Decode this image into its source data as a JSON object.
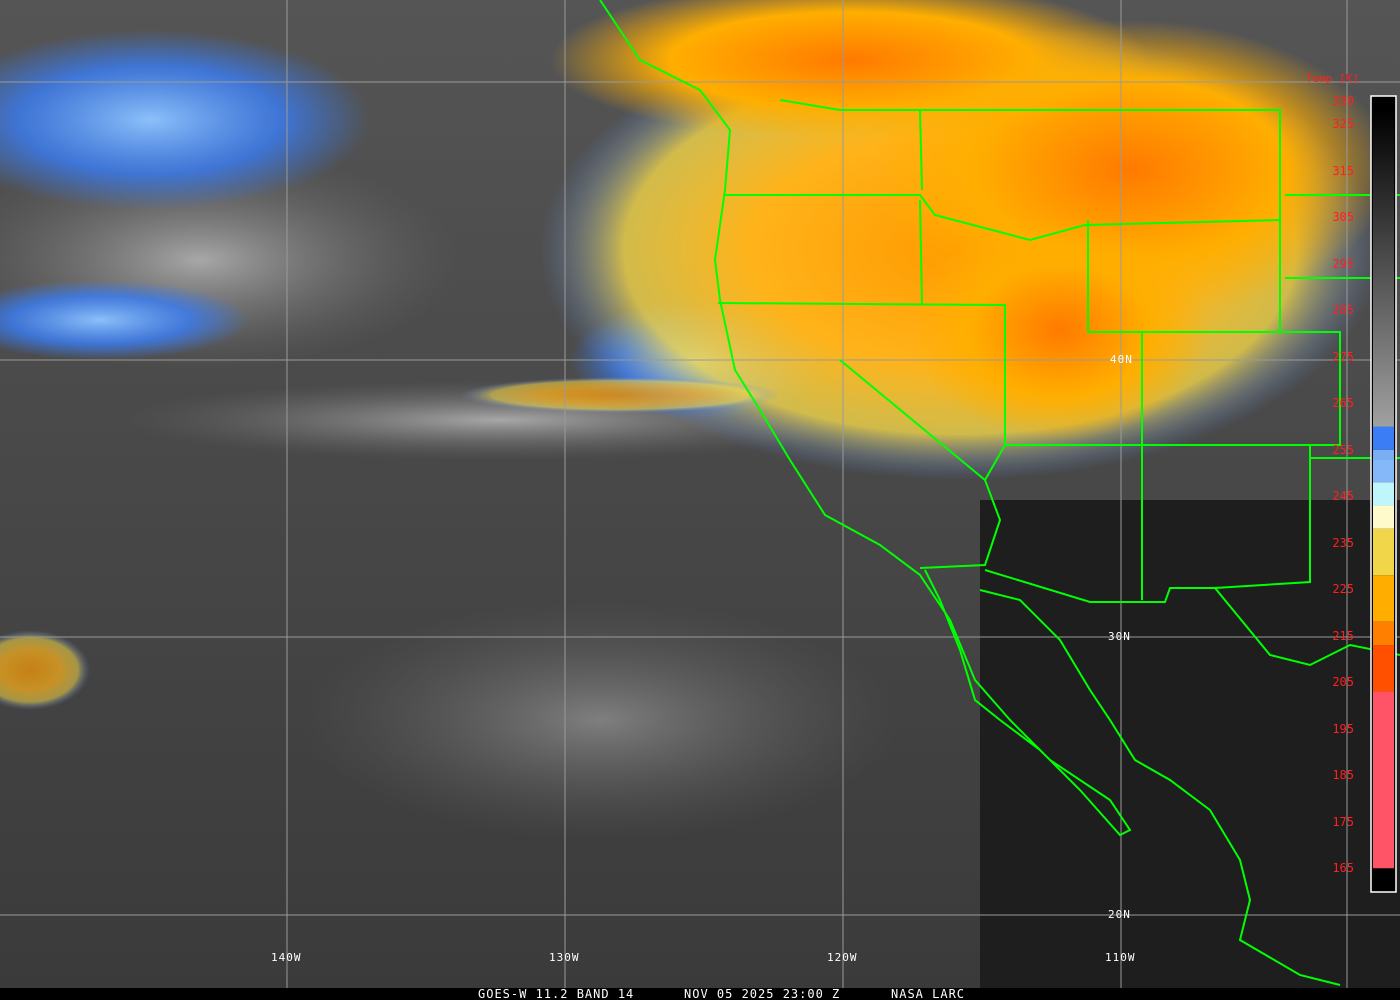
{
  "footer": {
    "satellite": "GOES-W 11.2 BAND 14",
    "datetime": "NOV 05 2025 23:00 Z",
    "source": "NASA LARC"
  },
  "colorbar": {
    "title": "Temp [K]",
    "ticks": [
      "330",
      "325",
      "315",
      "305",
      "295",
      "285",
      "275",
      "265",
      "255",
      "245",
      "235",
      "225",
      "215",
      "205",
      "195",
      "185",
      "175",
      "165"
    ],
    "range_k": [
      165,
      330
    ],
    "bands": [
      {
        "from": 330,
        "to": 260,
        "color": "gradient #000000-#a0a0a0"
      },
      {
        "from": 260,
        "to": 255,
        "color": "#3a7df5"
      },
      {
        "from": 255,
        "to": 253,
        "color": "#79aef5"
      },
      {
        "from": 253,
        "to": 248,
        "color": "#84b8f8"
      },
      {
        "from": 248,
        "to": 243,
        "color": "#bff6fc"
      },
      {
        "from": 243,
        "to": 238,
        "color": "#fffacc"
      },
      {
        "from": 238,
        "to": 228,
        "color": "#f2d64a"
      },
      {
        "from": 228,
        "to": 218,
        "color": "#ffae00"
      },
      {
        "from": 218,
        "to": 213,
        "color": "#ff8000"
      },
      {
        "from": 213,
        "to": 203,
        "color": "#ff5000"
      },
      {
        "from": 203,
        "to": 165,
        "color": "#ff5468"
      }
    ]
  },
  "grid": {
    "longitudes": [
      "140W",
      "130W",
      "120W",
      "110W"
    ],
    "latitudes": [
      "40N",
      "30N",
      "20N"
    ]
  },
  "colors": {
    "boundaries": "#00ff00",
    "grid": "#9a9a9a",
    "labels": "#ffffff",
    "scale_text": "#ff2020"
  }
}
